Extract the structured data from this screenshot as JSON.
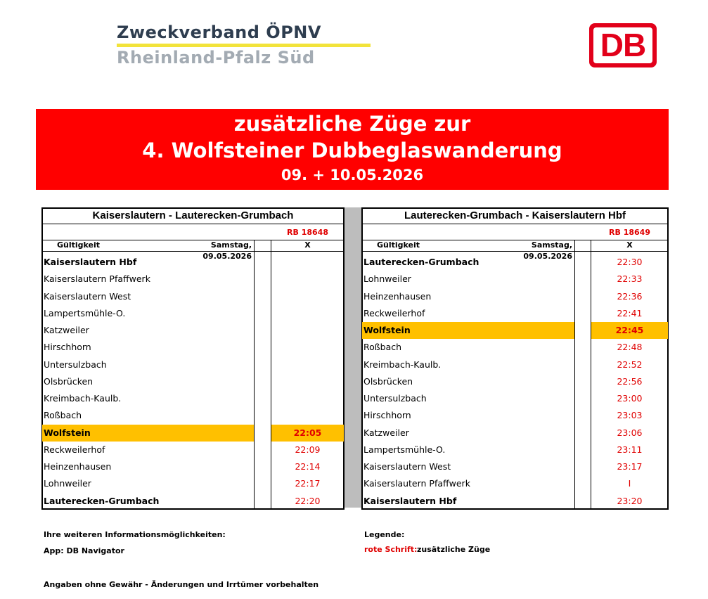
{
  "header": {
    "org_line1": "Zweckverband ÖPNV",
    "org_line2": "Rheinland-Pfalz Süd",
    "logo": "DB"
  },
  "banner": {
    "line1": "zusätzliche Züge zur",
    "line2": "4. Wolfsteiner Dubbeglaswanderung",
    "line3": "09. + 10.05.2026"
  },
  "tables": [
    {
      "title": "Kaiserslautern - Lauterecken-Grumbach",
      "train": "RB 18648",
      "validity_label": "Gültigkeit",
      "validity_date": "Samstag, 09.05.2026",
      "day_code": "X",
      "rows": [
        {
          "station": "Kaiserslautern Hbf",
          "time": null
        },
        {
          "station": "Kaiserslautern Pfaffwerk",
          "time": null
        },
        {
          "station": "Kaiserslautern West",
          "time": null
        },
        {
          "station": "Lampertsmühle-O.",
          "time": null
        },
        {
          "station": "Katzweiler",
          "time": null
        },
        {
          "station": "Hirschhorn",
          "time": null
        },
        {
          "station": "Untersulzbach",
          "time": null
        },
        {
          "station": "Olsbrücken",
          "time": null
        },
        {
          "station": "Kreimbach-Kaulb.",
          "time": null
        },
        {
          "station": "Roßbach",
          "time": null
        },
        {
          "station": "Wolfstein",
          "time": "22:05"
        },
        {
          "station": "Reckweilerhof",
          "time": "22:09"
        },
        {
          "station": "Heinzenhausen",
          "time": "22:14"
        },
        {
          "station": "Lohnweiler",
          "time": "22:17"
        },
        {
          "station": "Lauterecken-Grumbach",
          "time": "22:20"
        }
      ]
    },
    {
      "title": "Lauterecken-Grumbach - Kaiserslautern Hbf",
      "train": "RB 18649",
      "validity_label": "Gültigkeit",
      "validity_date": "Samstag, 09.05.2026",
      "day_code": "X",
      "rows": [
        {
          "station": "Lauterecken-Grumbach",
          "time": "22:30"
        },
        {
          "station": "Lohnweiler",
          "time": "22:33"
        },
        {
          "station": "Heinzenhausen",
          "time": "22:36"
        },
        {
          "station": "Reckweilerhof",
          "time": "22:41"
        },
        {
          "station": "Wolfstein",
          "time": "22:45"
        },
        {
          "station": "Roßbach",
          "time": "22:48"
        },
        {
          "station": "Kreimbach-Kaulb.",
          "time": "22:52"
        },
        {
          "station": "Olsbrücken",
          "time": "22:56"
        },
        {
          "station": "Untersulzbach",
          "time": "23:00"
        },
        {
          "station": "Hirschhorn",
          "time": "23:03"
        },
        {
          "station": "Katzweiler",
          "time": "23:06"
        },
        {
          "station": "Lampertsmühle-O.",
          "time": "23:11"
        },
        {
          "station": "Kaiserslautern West",
          "time": "23:17"
        },
        {
          "station": "Kaiserslautern Pfaffwerk",
          "time": "I"
        },
        {
          "station": "Kaiserslautern Hbf",
          "time": "23:20"
        }
      ]
    }
  ],
  "footer": {
    "info_label": "Ihre weiteren Informationsmöglichkeiten:",
    "app": "App: DB Navigator",
    "legend_label": "Legende:",
    "legend_key": "rote Schrift:",
    "legend_text": "zusätzliche Züge",
    "disclaimer": "Angaben ohne Gewähr - Änderungen und Irrtümer vorbehalten"
  }
}
